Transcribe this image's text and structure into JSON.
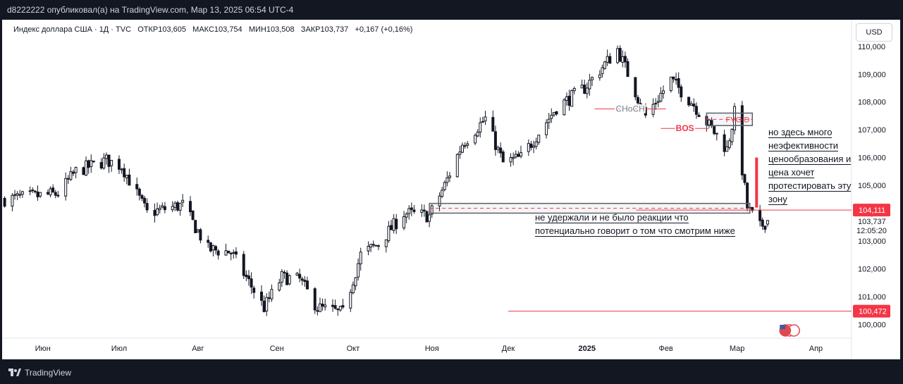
{
  "header": {
    "published_text": "d8222222 опубликовал(а) на TradingView.com, Мар 13, 2025 06:54 UTC-4"
  },
  "footer": {
    "brand": "TradingView"
  },
  "legend": {
    "symbol": "Индекс доллара США · 1Д · TVC",
    "open_label": "ОТКР",
    "open_value": "103,605",
    "high_label": "МАКС",
    "high_value": "103,754",
    "low_label": "МИН",
    "low_value": "103,508",
    "close_label": "ЗАКР",
    "close_value": "103,737",
    "change": "+0,167 (+0,16%)"
  },
  "currency_button": "USD",
  "colors": {
    "candle": "#131722",
    "accent_red": "#f23645",
    "axis_text": "#131722",
    "background": "#ffffff"
  },
  "chart_data": {
    "type": "candlestick",
    "y_axis": {
      "ticks": [
        100,
        101,
        102,
        103,
        104,
        105,
        106,
        107,
        108,
        109,
        110
      ],
      "tick_labels": [
        "100,000",
        "101,000",
        "102,000",
        "103,000",
        "104,000",
        "105,000",
        "106,000",
        "107,000",
        "108,000",
        "109,000",
        "110,000"
      ],
      "ylim": [
        99.5,
        110.3
      ]
    },
    "x_axis": {
      "labels": [
        {
          "date": "2024-06-01",
          "text": "Июн",
          "bold": false
        },
        {
          "date": "2024-07-01",
          "text": "Июл",
          "bold": false
        },
        {
          "date": "2024-08-01",
          "text": "Авг",
          "bold": false
        },
        {
          "date": "2024-09-01",
          "text": "Сен",
          "bold": false
        },
        {
          "date": "2024-10-01",
          "text": "Окт",
          "bold": false
        },
        {
          "date": "2024-11-01",
          "text": "Ноя",
          "bold": false
        },
        {
          "date": "2024-12-01",
          "text": "Дек",
          "bold": false
        },
        {
          "date": "2025-01-01",
          "text": "2025",
          "bold": true
        },
        {
          "date": "2025-02-01",
          "text": "Фев",
          "bold": false
        },
        {
          "date": "2025-03-01",
          "text": "Мар",
          "bold": false
        },
        {
          "date": "2025-04-01",
          "text": "Апр",
          "bold": false
        }
      ],
      "range": [
        "2024-05-16",
        "2025-04-15"
      ]
    },
    "path": [
      [
        "2024-05-17",
        104.5
      ],
      [
        "2024-05-28",
        104.6
      ],
      [
        "2024-06-07",
        104.7
      ],
      [
        "2024-06-14",
        105.5
      ],
      [
        "2024-06-26",
        105.9
      ],
      [
        "2024-07-02",
        105.7
      ],
      [
        "2024-07-12",
        104.0
      ],
      [
        "2024-07-26",
        104.3
      ],
      [
        "2024-08-05",
        102.7
      ],
      [
        "2024-08-14",
        102.6
      ],
      [
        "2024-08-27",
        100.6
      ],
      [
        "2024-09-03",
        101.7
      ],
      [
        "2024-09-10",
        101.6
      ],
      [
        "2024-09-17",
        100.6
      ],
      [
        "2024-09-27",
        100.4
      ],
      [
        "2024-10-04",
        102.5
      ],
      [
        "2024-10-11",
        102.9
      ],
      [
        "2024-10-21",
        104.0
      ],
      [
        "2024-10-31",
        103.9
      ],
      [
        "2024-11-06",
        105.0
      ],
      [
        "2024-11-13",
        106.5
      ],
      [
        "2024-11-22",
        107.4
      ],
      [
        "2024-11-29",
        105.8
      ],
      [
        "2024-12-06",
        106.0
      ],
      [
        "2024-12-20",
        107.8
      ],
      [
        "2024-12-31",
        108.5
      ],
      [
        "2025-01-13",
        109.9
      ],
      [
        "2025-01-24",
        107.5
      ],
      [
        "2025-02-03",
        108.8
      ],
      [
        "2025-02-12",
        107.9
      ],
      [
        "2025-02-25",
        106.3
      ],
      [
        "2025-02-28",
        107.6
      ],
      [
        "2025-03-05",
        104.2
      ],
      [
        "2025-03-10",
        103.5
      ],
      [
        "2025-03-13",
        103.74
      ]
    ],
    "price_lines": [
      {
        "value": 104.111,
        "label": "104,111"
      },
      {
        "value": 100.472,
        "label": "100,472"
      }
    ],
    "current_price": {
      "value": 103.737,
      "label": "103,737",
      "countdown": "12:05:20"
    },
    "markings": {
      "choch": {
        "text": "CHoCH",
        "level": 107.75,
        "from": "2025-01-04",
        "to": "2025-02-01"
      },
      "bos": {
        "text": "BOS",
        "level": 107.05,
        "from": "2025-01-30",
        "to": "2025-02-18"
      },
      "fvg_box": {
        "text": "FVG D",
        "top": 107.6,
        "bottom": 107.15,
        "from": "2025-02-17",
        "to": "2025-03-07"
      },
      "support_box": {
        "top": 104.35,
        "bottom": 104.0,
        "from": "2024-10-31",
        "to": "2025-03-06"
      },
      "red_arrow": {
        "from": 106.0,
        "to": 104.2,
        "date": "2025-03-07"
      }
    }
  },
  "annotations": {
    "right_note": [
      "но здесь много",
      "неэфективности",
      "ценообразования и",
      "цена хочет",
      "протестировать эту",
      "зону"
    ],
    "bottom_note": [
      "не удержали и не было реакции что",
      "потенциально говорит о том что смотрим ниже"
    ]
  }
}
